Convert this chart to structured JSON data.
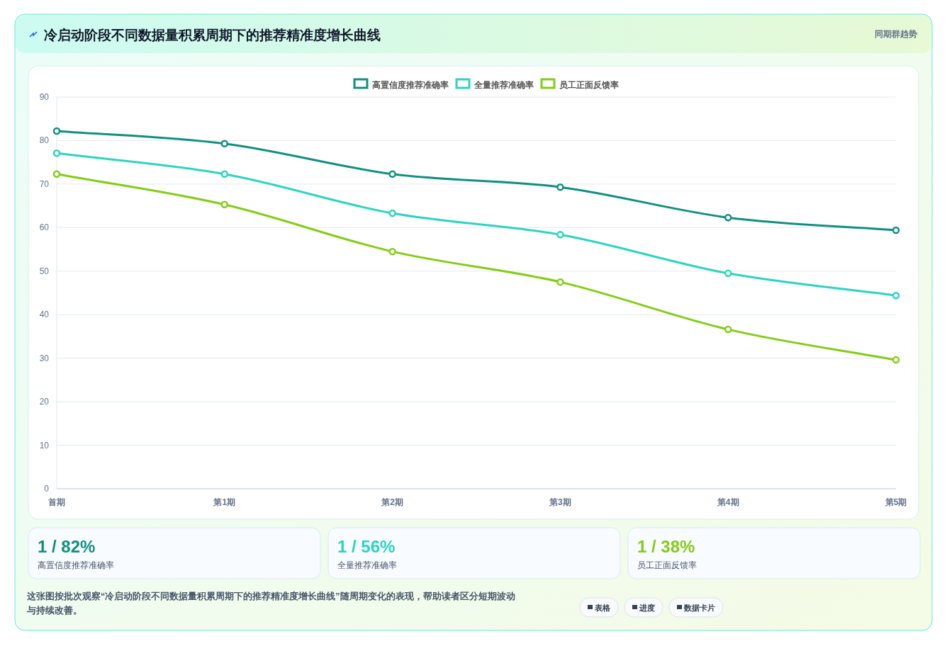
{
  "chart_data": {
    "type": "line",
    "title": "冷启动阶段不同数据量积累周期下的推荐精准度增长曲线",
    "categories": [
      "首期",
      "第1期",
      "第2期",
      "第3期",
      "第4期",
      "第5期"
    ],
    "series": [
      {
        "name": "高置信度推荐准确率",
        "color": "#11907f",
        "values": [
          82.2,
          79.3,
          72.3,
          69.3,
          62.3,
          59.4
        ]
      },
      {
        "name": "全量推荐准确率",
        "color": "#2dd4bf",
        "values": [
          77.1,
          72.3,
          63.3,
          58.4,
          49.5,
          44.4
        ]
      },
      {
        "name": "员工正面反馈率",
        "color": "#84cc16",
        "values": [
          72.3,
          65.3,
          54.5,
          47.5,
          36.6,
          29.6
        ]
      }
    ],
    "ylim": [
      0,
      90
    ],
    "yticks": [
      0,
      10,
      20,
      30,
      40,
      50,
      60,
      70,
      80,
      90
    ],
    "grid": "y",
    "legend": "top",
    "marker": "circle",
    "line_style": "solid",
    "annotations": [
      "同期群趋势",
      "1 / 82%",
      "高置信度推荐准确率",
      "1 / 56%",
      "全量推荐准确率",
      "1 / 38%",
      "员工正面反馈率",
      "这张图按批次观察“冷启动阶段不同数据量积累周期下的推荐精准度增长曲线”随周期变化的表现，帮助读者区分短期波动与持续改善。",
      "表格",
      "进度",
      "数据卡片"
    ]
  }
}
